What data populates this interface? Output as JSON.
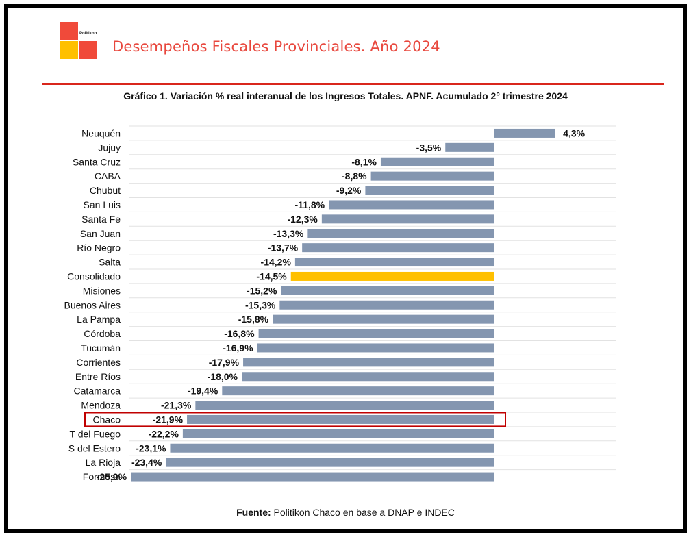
{
  "header": {
    "logo_text": "Politikon",
    "title": "Desempeños Fiscales Provinciales. Año 2024"
  },
  "colors": {
    "bar": "#8496b0",
    "highlight_bar": "#ffc000",
    "accent": "#e8473d",
    "highlight_box": "#c00000"
  },
  "chart_data": {
    "type": "bar",
    "orientation": "horizontal",
    "title": "Gráfico 1. Variación % real interanual de los Ingresos Totales. APNF. Acumulado 2° trimestre 2024",
    "categories": [
      "Neuquén",
      "Jujuy",
      "Santa Cruz",
      "CABA",
      "Chubut",
      "San Luis",
      "Santa Fe",
      "San Juan",
      "Río Negro",
      "Salta",
      "Consolidado",
      "Misiones",
      "Buenos Aires",
      "La Pampa",
      "Córdoba",
      "Tucumán",
      "Corrientes",
      "Entre Ríos",
      "Catamarca",
      "Mendoza",
      "Chaco",
      "T del Fuego",
      "S del Estero",
      "La Rioja",
      "Formosa"
    ],
    "values": [
      4.3,
      -3.5,
      -8.1,
      -8.8,
      -9.2,
      -11.8,
      -12.3,
      -13.3,
      -13.7,
      -14.2,
      -14.5,
      -15.2,
      -15.3,
      -15.8,
      -16.8,
      -16.9,
      -17.9,
      -18.0,
      -19.4,
      -21.3,
      -21.9,
      -22.2,
      -23.1,
      -23.4,
      -25.9
    ],
    "data_labels": [
      "4,3%",
      "-3,5%",
      "-8,1%",
      "-8,8%",
      "-9,2%",
      "-11,8%",
      "-12,3%",
      "-13,3%",
      "-13,7%",
      "-14,2%",
      "-14,5%",
      "-15,2%",
      "-15,3%",
      "-15,8%",
      "-16,8%",
      "-16,9%",
      "-17,9%",
      "-18,0%",
      "-19,4%",
      "-21,3%",
      "-21,9%",
      "-22,2%",
      "-23,1%",
      "-23,4%",
      "-25,9%"
    ],
    "highlighted_bar": "Consolidado",
    "boxed_category": "Chaco",
    "xlim": [
      -26,
      9
    ],
    "grid": true,
    "legend": "none"
  },
  "source": {
    "label": "Fuente:",
    "text": " Politikon Chaco en base a DNAP e INDEC"
  }
}
